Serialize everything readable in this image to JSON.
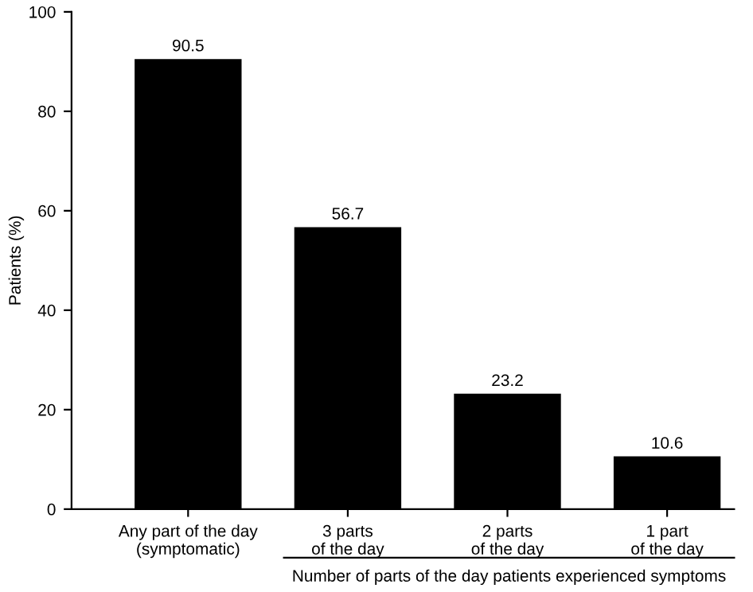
{
  "chart_data": {
    "type": "bar",
    "ylabel": "Patients (%)",
    "categories": [
      "Any part of the day\n(symptomatic)",
      "3 parts\nof the day",
      "2 parts\nof the day",
      "1 part\nof the day"
    ],
    "values": [
      90.5,
      56.7,
      23.2,
      10.6
    ],
    "color": "#000000",
    "data_labels": true,
    "ylim": [
      0,
      100
    ],
    "yticks": [
      0,
      20,
      40,
      60,
      80,
      100
    ],
    "grid": false,
    "legend": false,
    "annotations": [
      "Number of parts of the day patients experienced symptoms"
    ]
  }
}
